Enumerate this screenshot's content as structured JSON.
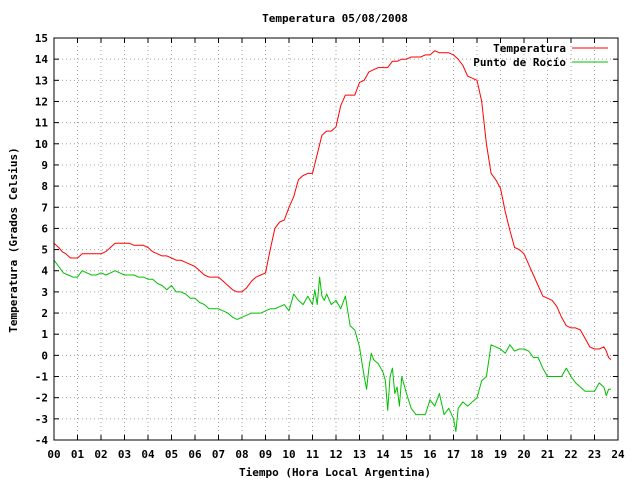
{
  "chart_data": {
    "type": "line",
    "title": "Temperatura 05/08/2008",
    "xlabel": "Tiempo (Hora Local Argentina)",
    "ylabel": "Temperatura (Grados Celsius)",
    "xlim": [
      0,
      24
    ],
    "ylim": [
      -4,
      15
    ],
    "x_ticks": [
      "00",
      "01",
      "02",
      "03",
      "04",
      "05",
      "06",
      "07",
      "08",
      "09",
      "10",
      "11",
      "12",
      "13",
      "14",
      "15",
      "16",
      "17",
      "18",
      "19",
      "20",
      "21",
      "22",
      "23",
      "24"
    ],
    "y_ticks": [
      -4,
      -3,
      -2,
      -1,
      0,
      1,
      2,
      3,
      4,
      5,
      6,
      7,
      8,
      9,
      10,
      11,
      12,
      13,
      14,
      15
    ],
    "grid": true,
    "legend_position": "top-right",
    "colors": {
      "temperatura": "#ff0000",
      "punto_de_rocio": "#00c000",
      "grid": "#a0a0a0",
      "frame": "#000000"
    },
    "series": [
      {
        "name": "Temperatura",
        "x": [
          0,
          0.2,
          0.35,
          0.5,
          0.7,
          1.0,
          1.2,
          1.4,
          1.6,
          1.8,
          2.0,
          2.2,
          2.4,
          2.6,
          2.8,
          3.0,
          3.2,
          3.4,
          3.6,
          3.8,
          4.0,
          4.2,
          4.4,
          4.6,
          4.8,
          5.0,
          5.2,
          5.4,
          5.6,
          5.8,
          6.0,
          6.2,
          6.4,
          6.6,
          6.8,
          7.0,
          7.2,
          7.4,
          7.6,
          7.8,
          8.0,
          8.2,
          8.4,
          8.6,
          8.8,
          9.0,
          9.2,
          9.4,
          9.6,
          9.8,
          10.0,
          10.2,
          10.4,
          10.6,
          10.8,
          11.0,
          11.2,
          11.4,
          11.6,
          11.8,
          12.0,
          12.2,
          12.4,
          12.6,
          12.8,
          13.0,
          13.2,
          13.4,
          13.6,
          13.8,
          14.0,
          14.2,
          14.4,
          14.6,
          14.8,
          15.0,
          15.2,
          15.4,
          15.6,
          15.8,
          16.0,
          16.2,
          16.4,
          16.6,
          16.8,
          17.0,
          17.2,
          17.4,
          17.6,
          17.8,
          18.0,
          18.2,
          18.4,
          18.6,
          18.8,
          19.0,
          19.2,
          19.4,
          19.6,
          19.8,
          20.0,
          20.2,
          20.4,
          20.6,
          20.8,
          21.0,
          21.2,
          21.4,
          21.6,
          21.8,
          22.0,
          22.2,
          22.4,
          22.6,
          22.8,
          23.0,
          23.2,
          23.4,
          23.5,
          23.6,
          23.7
        ],
        "values": [
          5.3,
          5.1,
          4.9,
          4.8,
          4.6,
          4.6,
          4.8,
          4.8,
          4.8,
          4.8,
          4.8,
          4.9,
          5.1,
          5.3,
          5.3,
          5.3,
          5.3,
          5.2,
          5.2,
          5.2,
          5.1,
          4.9,
          4.8,
          4.7,
          4.7,
          4.6,
          4.5,
          4.5,
          4.4,
          4.3,
          4.2,
          4.0,
          3.8,
          3.7,
          3.7,
          3.7,
          3.5,
          3.3,
          3.1,
          3.0,
          3.0,
          3.2,
          3.5,
          3.7,
          3.8,
          3.9,
          5.0,
          6.0,
          6.3,
          6.4,
          7.0,
          7.5,
          8.3,
          8.5,
          8.6,
          8.6,
          9.5,
          10.4,
          10.6,
          10.6,
          10.8,
          11.8,
          12.3,
          12.3,
          12.3,
          12.9,
          13.0,
          13.4,
          13.5,
          13.6,
          13.6,
          13.6,
          13.9,
          13.9,
          14.0,
          14.0,
          14.1,
          14.1,
          14.1,
          14.2,
          14.2,
          14.4,
          14.3,
          14.3,
          14.3,
          14.2,
          14.0,
          13.7,
          13.2,
          13.1,
          13.0,
          12.0,
          10.0,
          8.6,
          8.3,
          7.9,
          6.8,
          5.9,
          5.1,
          5.0,
          4.8,
          4.3,
          3.8,
          3.3,
          2.8,
          2.7,
          2.6,
          2.3,
          1.8,
          1.4,
          1.3,
          1.3,
          1.2,
          0.8,
          0.4,
          0.3,
          0.3,
          0.4,
          0.2,
          -0.1,
          -0.2
        ]
      },
      {
        "name": "Punto de Rocío",
        "x": [
          0,
          0.2,
          0.4,
          0.6,
          0.8,
          1.0,
          1.2,
          1.4,
          1.6,
          1.8,
          2.0,
          2.2,
          2.4,
          2.6,
          2.8,
          3.0,
          3.2,
          3.4,
          3.6,
          3.8,
          4.0,
          4.2,
          4.4,
          4.6,
          4.8,
          5.0,
          5.2,
          5.4,
          5.6,
          5.8,
          6.0,
          6.2,
          6.4,
          6.6,
          6.8,
          7.0,
          7.2,
          7.4,
          7.6,
          7.8,
          8.0,
          8.2,
          8.4,
          8.6,
          8.8,
          9.0,
          9.2,
          9.4,
          9.6,
          9.8,
          10.0,
          10.2,
          10.4,
          10.6,
          10.8,
          11.0,
          11.1,
          11.2,
          11.3,
          11.4,
          11.5,
          11.6,
          11.8,
          12.0,
          12.2,
          12.4,
          12.6,
          12.8,
          13.0,
          13.1,
          13.2,
          13.3,
          13.4,
          13.5,
          13.6,
          13.8,
          14.0,
          14.1,
          14.2,
          14.3,
          14.4,
          14.5,
          14.6,
          14.7,
          14.8,
          15.0,
          15.2,
          15.4,
          15.6,
          15.8,
          16.0,
          16.2,
          16.4,
          16.6,
          16.8,
          17.0,
          17.1,
          17.2,
          17.4,
          17.6,
          17.8,
          18.0,
          18.2,
          18.4,
          18.6,
          18.8,
          19.0,
          19.2,
          19.4,
          19.6,
          19.8,
          20.0,
          20.2,
          20.4,
          20.6,
          20.8,
          21.0,
          21.2,
          21.4,
          21.6,
          21.8,
          22.0,
          22.2,
          22.4,
          22.6,
          22.8,
          23.0,
          23.2,
          23.4,
          23.5,
          23.6,
          23.7
        ],
        "values": [
          4.5,
          4.2,
          3.9,
          3.8,
          3.7,
          3.7,
          4.0,
          3.9,
          3.8,
          3.8,
          3.9,
          3.8,
          3.9,
          4.0,
          3.9,
          3.8,
          3.8,
          3.8,
          3.7,
          3.7,
          3.6,
          3.6,
          3.4,
          3.3,
          3.1,
          3.3,
          3.0,
          3.0,
          2.9,
          2.7,
          2.7,
          2.5,
          2.4,
          2.2,
          2.2,
          2.2,
          2.1,
          2.0,
          1.8,
          1.7,
          1.8,
          1.9,
          2.0,
          2.0,
          2.0,
          2.1,
          2.2,
          2.2,
          2.3,
          2.4,
          2.1,
          2.9,
          2.6,
          2.4,
          2.8,
          2.4,
          3.1,
          2.4,
          3.7,
          2.8,
          2.6,
          2.9,
          2.4,
          2.6,
          2.2,
          2.8,
          1.4,
          1.2,
          0.4,
          -0.3,
          -1.0,
          -1.6,
          -0.6,
          0.1,
          -0.2,
          -0.4,
          -0.8,
          -1.2,
          -2.6,
          -1.0,
          -0.6,
          -1.8,
          -1.5,
          -2.4,
          -1.0,
          -1.8,
          -2.5,
          -2.8,
          -2.8,
          -2.8,
          -2.1,
          -2.4,
          -1.8,
          -2.8,
          -2.5,
          -3.0,
          -3.6,
          -2.5,
          -2.2,
          -2.4,
          -2.2,
          -2.0,
          -1.2,
          -1.0,
          0.5,
          0.4,
          0.3,
          0.1,
          0.5,
          0.2,
          0.3,
          0.3,
          0.2,
          -0.1,
          -0.1,
          -0.6,
          -1.0,
          -1.0,
          -1.0,
          -1.0,
          -0.6,
          -1.0,
          -1.3,
          -1.5,
          -1.7,
          -1.7,
          -1.7,
          -1.3,
          -1.5,
          -1.9,
          -1.6,
          -1.6
        ]
      }
    ]
  }
}
